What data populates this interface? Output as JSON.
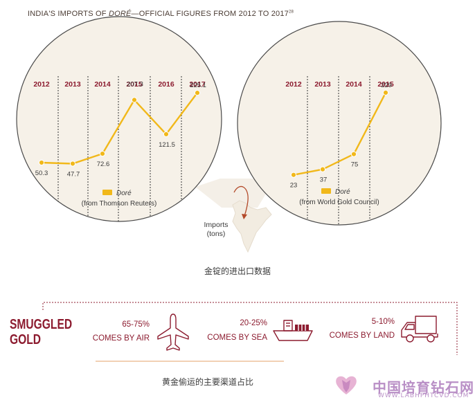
{
  "title": {
    "prefix": "INDIA'S IMPORTS OF ",
    "italic": "DORÉ",
    "suffix": "—OFFICIAL FIGURES FROM 2012 TO 2017",
    "footnote": "28"
  },
  "colors": {
    "gold": "#f1b81a",
    "maroon": "#8c1b2f",
    "circle_fill": "#f6f1e8",
    "circle_stroke": "#4a4a4a",
    "text": "#3a3a3a"
  },
  "chart_data": [
    {
      "type": "line",
      "x": [
        "2012",
        "2013",
        "2014",
        "2015",
        "2016",
        "2017"
      ],
      "series": [
        {
          "name": "Doré",
          "values": [
            50.3,
            47.7,
            72.6,
            207.3,
            121.5,
            225.1
          ]
        }
      ],
      "labels": [
        "50.3",
        "47.7",
        "72.6",
        "207.3",
        "121.5",
        "225.1"
      ],
      "legend": {
        "name": "Doré",
        "source": "(from Thomson Reuters)"
      },
      "ylim": [
        0,
        260
      ],
      "grid": "dashed vertical dividers between years"
    },
    {
      "type": "line",
      "x": [
        "2012",
        "2013",
        "2014",
        "2015"
      ],
      "series": [
        {
          "name": "Doré",
          "values": [
            23,
            37,
            75,
            229
          ]
        }
      ],
      "labels": [
        "23",
        "37",
        "75",
        "229"
      ],
      "legend": {
        "name": "Doré",
        "source": "(from World Gold Council)"
      },
      "ylim": [
        0,
        260
      ],
      "grid": "dashed vertical dividers between years"
    }
  ],
  "map_label": {
    "line1": "Imports",
    "line2": "(tons)"
  },
  "caption_top": "金锭的进出口数据",
  "smuggled": {
    "title_line1": "SMUGGLED",
    "title_line2": "GOLD",
    "routes": [
      {
        "pct": "65-75%",
        "text": "COMES BY AIR",
        "icon": "airplane-icon"
      },
      {
        "pct": "20-25%",
        "text": "COMES BY SEA",
        "icon": "ship-icon"
      },
      {
        "pct": "5-10%",
        "text": "COMES BY LAND",
        "icon": "truck-icon"
      }
    ]
  },
  "caption_bottom": "黄金偷运的主要渠道占比",
  "watermark": {
    "text": "中国培育钻石网",
    "url": "WWW.LABHPHTCVD.COM"
  }
}
